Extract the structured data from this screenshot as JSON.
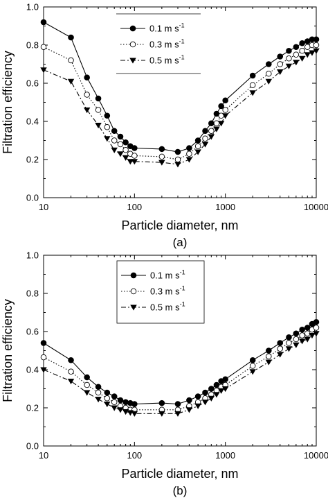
{
  "chart_data": [
    {
      "type": "line",
      "panel_label": "(a)",
      "xlabel": "Particle diameter, nm",
      "ylabel": "Filtration efficiency",
      "xscale": "log",
      "xlim": [
        10,
        10000
      ],
      "ylim": [
        0.0,
        1.0
      ],
      "xticks": [
        10,
        100,
        1000,
        10000
      ],
      "yticks": [
        0.0,
        0.2,
        0.4,
        0.6,
        0.8,
        1.0
      ],
      "grid": false,
      "legend": {
        "placement": "top-center",
        "framed": false,
        "lines_above_below": true
      },
      "x": [
        10,
        20,
        30,
        40,
        50,
        60,
        70,
        80,
        90,
        100,
        200,
        300,
        400,
        500,
        600,
        700,
        800,
        900,
        1000,
        2000,
        3000,
        4000,
        5000,
        6000,
        7000,
        8000,
        9000,
        10000
      ],
      "series": [
        {
          "name": "0.1 m s",
          "unit_exp": "-1",
          "marker": "filled-circle",
          "line": "solid",
          "values": [
            0.92,
            0.84,
            0.63,
            0.52,
            0.43,
            0.35,
            0.32,
            0.29,
            0.27,
            0.26,
            0.255,
            0.24,
            0.26,
            0.3,
            0.35,
            0.39,
            0.44,
            0.48,
            0.51,
            0.64,
            0.7,
            0.74,
            0.77,
            0.79,
            0.81,
            0.82,
            0.83,
            0.83
          ]
        },
        {
          "name": "0.3 m s",
          "unit_exp": "-1",
          "marker": "open-circle",
          "line": "dotted",
          "values": [
            0.79,
            0.72,
            0.54,
            0.46,
            0.37,
            0.3,
            0.28,
            0.25,
            0.23,
            0.22,
            0.215,
            0.2,
            0.23,
            0.27,
            0.31,
            0.35,
            0.39,
            0.43,
            0.46,
            0.59,
            0.65,
            0.7,
            0.73,
            0.75,
            0.77,
            0.79,
            0.8,
            0.8
          ]
        },
        {
          "name": "0.5 m s",
          "unit_exp": "-1",
          "marker": "filled-triangle-down",
          "line": "dashed",
          "values": [
            0.67,
            0.61,
            0.46,
            0.38,
            0.31,
            0.25,
            0.23,
            0.21,
            0.19,
            0.19,
            0.185,
            0.175,
            0.2,
            0.24,
            0.28,
            0.32,
            0.36,
            0.39,
            0.43,
            0.55,
            0.61,
            0.66,
            0.69,
            0.71,
            0.73,
            0.75,
            0.76,
            0.77
          ]
        }
      ]
    },
    {
      "type": "line",
      "panel_label": "(b)",
      "xlabel": "Particle diameter, nm",
      "ylabel": "Filtration efficiency",
      "xscale": "log",
      "xlim": [
        10,
        10000
      ],
      "ylim": [
        0.0,
        1.0
      ],
      "xticks": [
        10,
        100,
        1000,
        10000
      ],
      "yticks": [
        0.0,
        0.2,
        0.4,
        0.6,
        0.8,
        1.0
      ],
      "grid": false,
      "legend": {
        "placement": "top-left",
        "framed": true
      },
      "x": [
        10,
        20,
        30,
        40,
        50,
        60,
        70,
        80,
        90,
        100,
        200,
        300,
        400,
        500,
        600,
        700,
        800,
        900,
        1000,
        2000,
        3000,
        4000,
        5000,
        6000,
        7000,
        8000,
        9000,
        10000
      ],
      "series": [
        {
          "name": "0.1 m s",
          "unit_exp": "-1",
          "marker": "filled-circle",
          "line": "solid",
          "values": [
            0.54,
            0.45,
            0.36,
            0.31,
            0.28,
            0.26,
            0.24,
            0.23,
            0.225,
            0.22,
            0.225,
            0.22,
            0.24,
            0.26,
            0.28,
            0.3,
            0.32,
            0.34,
            0.35,
            0.45,
            0.5,
            0.54,
            0.57,
            0.59,
            0.61,
            0.62,
            0.64,
            0.65
          ]
        },
        {
          "name": "0.3 m s",
          "unit_exp": "-1",
          "marker": "open-circle",
          "line": "dotted",
          "values": [
            0.465,
            0.39,
            0.32,
            0.28,
            0.25,
            0.23,
            0.21,
            0.2,
            0.19,
            0.19,
            0.19,
            0.19,
            0.21,
            0.23,
            0.25,
            0.27,
            0.29,
            0.31,
            0.32,
            0.42,
            0.47,
            0.51,
            0.54,
            0.56,
            0.58,
            0.59,
            0.61,
            0.62
          ]
        },
        {
          "name": "0.5 m s",
          "unit_exp": "-1",
          "marker": "filled-triangle-down",
          "line": "dashed",
          "values": [
            0.4,
            0.34,
            0.28,
            0.245,
            0.22,
            0.2,
            0.19,
            0.18,
            0.175,
            0.17,
            0.17,
            0.17,
            0.19,
            0.21,
            0.23,
            0.25,
            0.27,
            0.29,
            0.3,
            0.39,
            0.44,
            0.48,
            0.51,
            0.53,
            0.55,
            0.56,
            0.58,
            0.59
          ]
        }
      ]
    }
  ]
}
